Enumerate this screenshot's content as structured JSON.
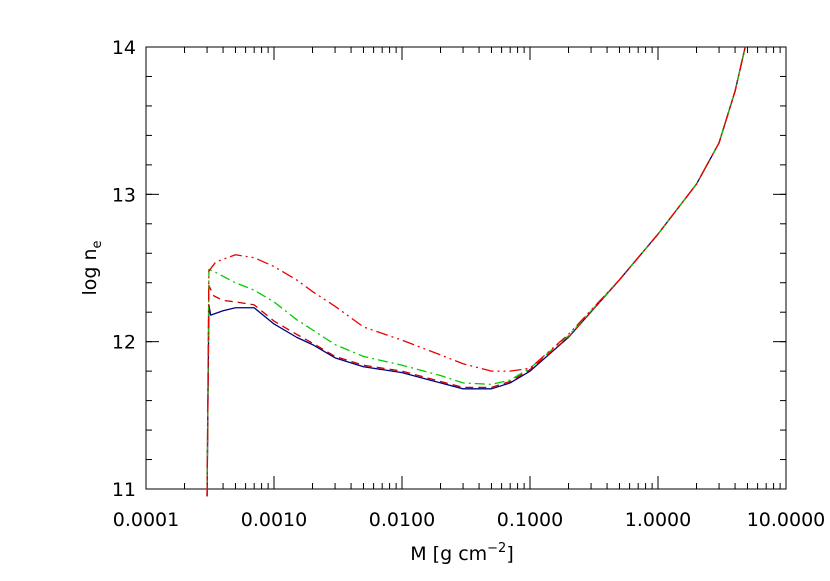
{
  "chart_data": {
    "type": "line",
    "title": "",
    "xlabel": "M [g cm",
    "xlabel_sup": "−2",
    "xlabel_close": "]",
    "ylabel": "log n",
    "ylabel_sub": "e",
    "xscale": "log",
    "xlim": [
      0.0001,
      10.0
    ],
    "ylim": [
      11,
      14
    ],
    "grid": false,
    "legend": "none",
    "xticks": [
      {
        "value": 0.0001,
        "label": "0.0001"
      },
      {
        "value": 0.001,
        "label": "0.0010"
      },
      {
        "value": 0.01,
        "label": "0.0100"
      },
      {
        "value": 0.1,
        "label": "0.1000"
      },
      {
        "value": 1.0,
        "label": "1.0000"
      },
      {
        "value": 10.0,
        "label": "10.0000"
      }
    ],
    "yticks": [
      {
        "value": 11,
        "label": "11"
      },
      {
        "value": 12,
        "label": "12"
      },
      {
        "value": 13,
        "label": "13"
      },
      {
        "value": 14,
        "label": "14"
      }
    ],
    "series": [
      {
        "color": "#000080",
        "dash": "solid",
        "points": [
          [
            0.0003,
            10.95
          ],
          [
            0.00031,
            12.25
          ],
          [
            0.00032,
            12.18
          ],
          [
            0.0004,
            12.21
          ],
          [
            0.0005,
            12.23
          ],
          [
            0.0007,
            12.23
          ],
          [
            0.001,
            12.12
          ],
          [
            0.0015,
            12.03
          ],
          [
            0.002,
            11.98
          ],
          [
            0.003,
            11.89
          ],
          [
            0.005,
            11.83
          ],
          [
            0.01,
            11.79
          ],
          [
            0.02,
            11.72
          ],
          [
            0.03,
            11.68
          ],
          [
            0.05,
            11.68
          ],
          [
            0.07,
            11.72
          ],
          [
            0.1,
            11.8
          ],
          [
            0.2,
            12.03
          ],
          [
            0.5,
            12.42
          ],
          [
            1.0,
            12.73
          ],
          [
            2.0,
            13.07
          ],
          [
            3.0,
            13.35
          ],
          [
            4.0,
            13.7
          ],
          [
            4.8,
            14.0
          ]
        ]
      },
      {
        "color": "#cc0000",
        "dash": "dash",
        "points": [
          [
            0.0003,
            10.95
          ],
          [
            0.00031,
            12.38
          ],
          [
            0.00034,
            12.31
          ],
          [
            0.0004,
            12.28
          ],
          [
            0.0005,
            12.27
          ],
          [
            0.0007,
            12.25
          ],
          [
            0.001,
            12.14
          ],
          [
            0.0015,
            12.05
          ],
          [
            0.002,
            11.99
          ],
          [
            0.003,
            11.9
          ],
          [
            0.005,
            11.84
          ],
          [
            0.01,
            11.8
          ],
          [
            0.02,
            11.73
          ],
          [
            0.03,
            11.69
          ],
          [
            0.05,
            11.69
          ],
          [
            0.07,
            11.73
          ],
          [
            0.1,
            11.81
          ],
          [
            0.2,
            12.03
          ],
          [
            0.5,
            12.42
          ],
          [
            1.0,
            12.73
          ],
          [
            2.0,
            13.07
          ],
          [
            3.0,
            13.35
          ],
          [
            4.0,
            13.7
          ],
          [
            4.8,
            14.0
          ]
        ]
      },
      {
        "color": "#00cc00",
        "dash": "dashdot",
        "points": [
          [
            0.0003,
            10.95
          ],
          [
            0.00031,
            12.49
          ],
          [
            0.00035,
            12.47
          ],
          [
            0.0005,
            12.4
          ],
          [
            0.0007,
            12.35
          ],
          [
            0.001,
            12.27
          ],
          [
            0.0015,
            12.15
          ],
          [
            0.002,
            12.08
          ],
          [
            0.003,
            11.98
          ],
          [
            0.005,
            11.9
          ],
          [
            0.01,
            11.84
          ],
          [
            0.02,
            11.77
          ],
          [
            0.03,
            11.72
          ],
          [
            0.05,
            11.71
          ],
          [
            0.07,
            11.74
          ],
          [
            0.1,
            11.82
          ],
          [
            0.2,
            12.04
          ],
          [
            0.5,
            12.42
          ],
          [
            1.0,
            12.73
          ],
          [
            2.0,
            13.07
          ],
          [
            3.0,
            13.35
          ],
          [
            4.0,
            13.7
          ],
          [
            4.8,
            14.0
          ]
        ]
      },
      {
        "color": "#ee0000",
        "dash": "dashdotdot",
        "points": [
          [
            0.0003,
            10.95
          ],
          [
            0.00031,
            12.48
          ],
          [
            0.00035,
            12.54
          ],
          [
            0.0005,
            12.59
          ],
          [
            0.0007,
            12.57
          ],
          [
            0.001,
            12.51
          ],
          [
            0.0015,
            12.42
          ],
          [
            0.002,
            12.34
          ],
          [
            0.003,
            12.24
          ],
          [
            0.005,
            12.1
          ],
          [
            0.01,
            12.01
          ],
          [
            0.02,
            11.91
          ],
          [
            0.03,
            11.85
          ],
          [
            0.05,
            11.8
          ],
          [
            0.07,
            11.8
          ],
          [
            0.1,
            11.82
          ],
          [
            0.2,
            12.05
          ],
          [
            0.5,
            12.42
          ],
          [
            1.0,
            12.73
          ],
          [
            2.0,
            13.07
          ],
          [
            3.0,
            13.35
          ],
          [
            4.0,
            13.7
          ],
          [
            4.8,
            14.0
          ]
        ]
      }
    ]
  }
}
